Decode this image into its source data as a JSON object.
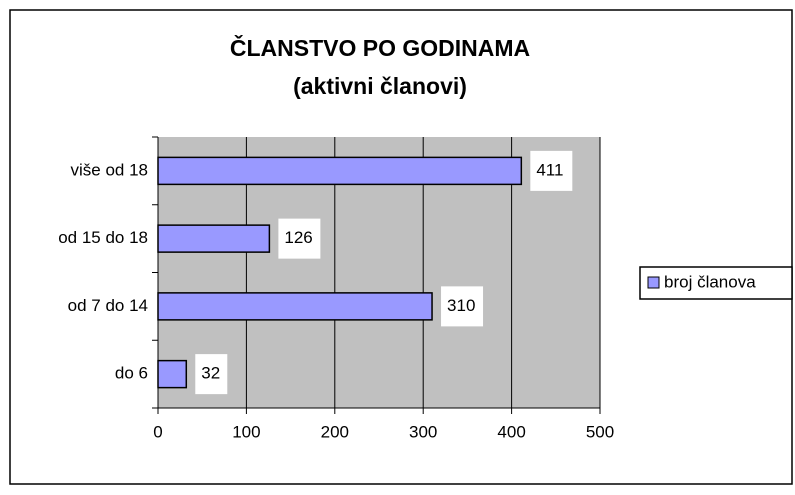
{
  "chart_data": {
    "type": "bar",
    "orientation": "horizontal",
    "title": "ČLANSTVO PO GODINAMA",
    "subtitle": "(aktivni članovi)",
    "categories": [
      "više od 18",
      "od 15 do 18",
      "od 7 do 14",
      "do 6"
    ],
    "series": [
      {
        "name": "broj članova",
        "color": "#9999ff",
        "values": [
          411,
          126,
          310,
          32
        ]
      }
    ],
    "xlim": [
      0,
      500
    ],
    "xticks": [
      0,
      100,
      200,
      300,
      400,
      500
    ],
    "grid": true,
    "legend": "right"
  }
}
